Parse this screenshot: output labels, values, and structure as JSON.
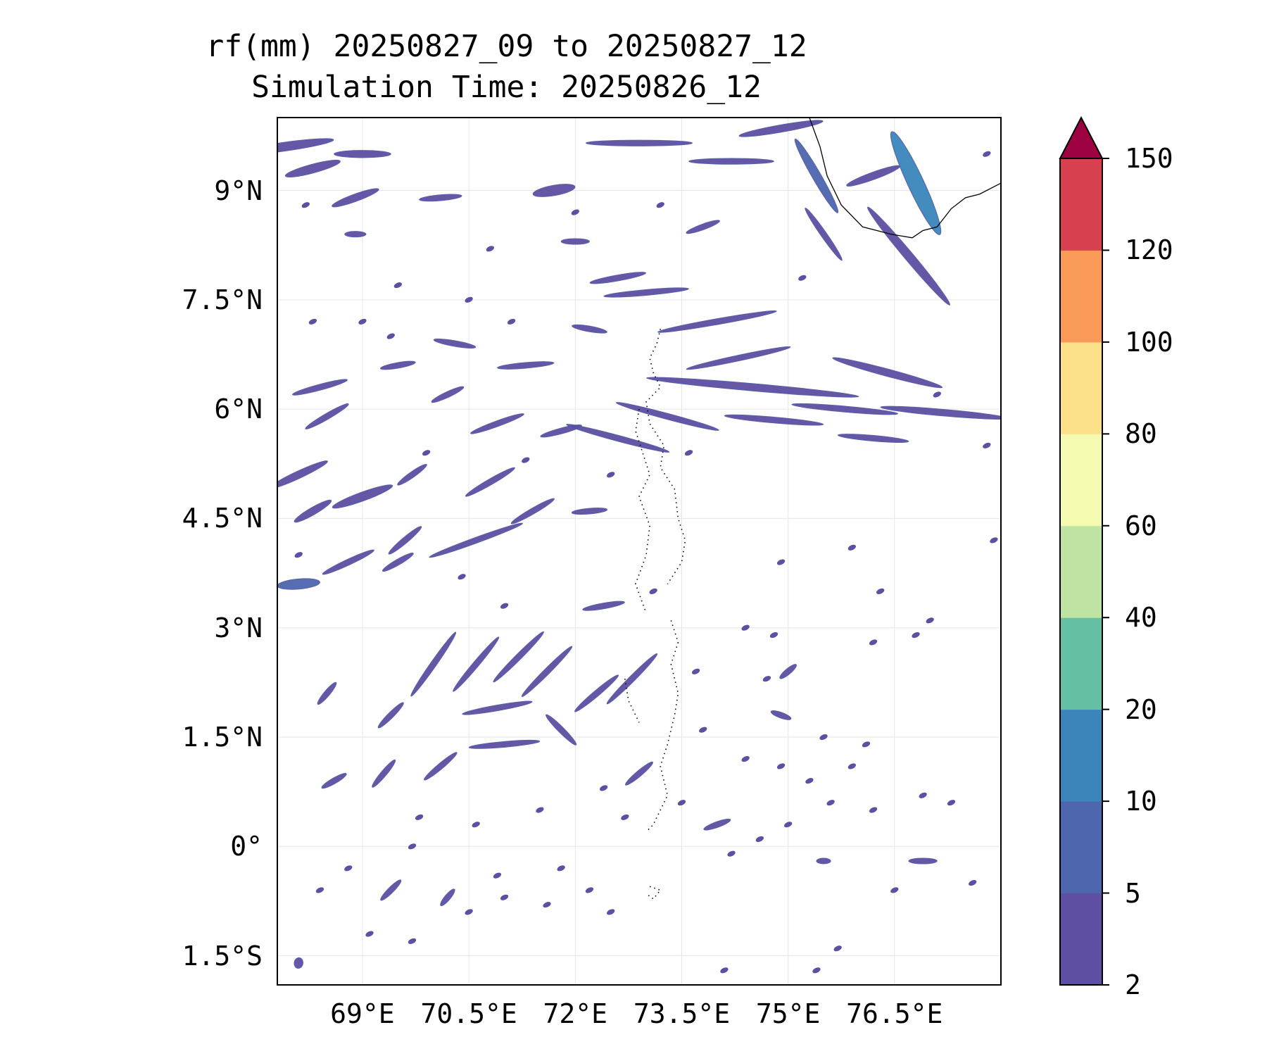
{
  "title": {
    "line1": "rf(mm) 20250827_09 to 20250827_12",
    "line2": "Simulation Time: 20250826_12"
  },
  "map": {
    "lon_range": [
      67.8,
      78.0
    ],
    "lat_range": [
      -1.9,
      10.0
    ],
    "gridlines": true,
    "lat_ticks": [
      {
        "value": 9,
        "label": "9°N"
      },
      {
        "value": 7.5,
        "label": "7.5°N"
      },
      {
        "value": 6,
        "label": "6°N"
      },
      {
        "value": 4.5,
        "label": "4.5°N"
      },
      {
        "value": 3,
        "label": "3°N"
      },
      {
        "value": 1.5,
        "label": "1.5°N"
      },
      {
        "value": 0,
        "label": "0°"
      },
      {
        "value": -1.5,
        "label": "1.5°S"
      }
    ],
    "lon_ticks": [
      {
        "value": 69,
        "label": "69°E"
      },
      {
        "value": 70.5,
        "label": "70.5°E"
      },
      {
        "value": 72,
        "label": "72°E"
      },
      {
        "value": 73.5,
        "label": "73.5°E"
      },
      {
        "value": 75,
        "label": "75°E"
      },
      {
        "value": 76.5,
        "label": "76.5°E"
      }
    ],
    "rain_bands": [
      {
        "lon": 67.9,
        "lat": 9.6,
        "len": 1.4,
        "w": 0.12,
        "ang": 8,
        "lvl": 1
      },
      {
        "lon": 69.0,
        "lat": 9.5,
        "len": 0.8,
        "w": 0.1,
        "ang": 0,
        "lvl": 1
      },
      {
        "lon": 68.3,
        "lat": 9.3,
        "len": 0.8,
        "w": 0.12,
        "ang": 15,
        "lvl": 1
      },
      {
        "lon": 68.9,
        "lat": 8.9,
        "len": 0.7,
        "w": 0.1,
        "ang": 20,
        "lvl": 1
      },
      {
        "lon": 70.1,
        "lat": 8.9,
        "len": 0.6,
        "w": 0.08,
        "ang": 5,
        "lvl": 1
      },
      {
        "lon": 71.7,
        "lat": 9.0,
        "len": 0.6,
        "w": 0.14,
        "ang": 10,
        "lvl": 1
      },
      {
        "lon": 72.9,
        "lat": 9.65,
        "len": 1.5,
        "w": 0.08,
        "ang": 0,
        "lvl": 1
      },
      {
        "lon": 74.2,
        "lat": 9.4,
        "len": 1.2,
        "w": 0.08,
        "ang": 0,
        "lvl": 1
      },
      {
        "lon": 74.9,
        "lat": 9.85,
        "len": 1.2,
        "w": 0.1,
        "ang": 10,
        "lvl": 1
      },
      {
        "lon": 75.4,
        "lat": 9.2,
        "len": 1.2,
        "w": 0.12,
        "ang": -60,
        "lvl": 2
      },
      {
        "lon": 76.8,
        "lat": 9.1,
        "len": 1.6,
        "w": 0.22,
        "ang": -65,
        "lvl": 3
      },
      {
        "lon": 76.7,
        "lat": 8.1,
        "len": 1.8,
        "w": 0.12,
        "ang": -50,
        "lvl": 1
      },
      {
        "lon": 75.5,
        "lat": 8.4,
        "len": 0.9,
        "w": 0.08,
        "ang": -55,
        "lvl": 1
      },
      {
        "lon": 76.2,
        "lat": 9.2,
        "len": 0.8,
        "w": 0.1,
        "ang": 20,
        "lvl": 1
      },
      {
        "lon": 68.9,
        "lat": 8.4,
        "len": 0.3,
        "w": 0.06,
        "ang": 0,
        "lvl": 1
      },
      {
        "lon": 72.0,
        "lat": 8.3,
        "len": 0.4,
        "w": 0.06,
        "ang": 0,
        "lvl": 1
      },
      {
        "lon": 73.8,
        "lat": 8.5,
        "len": 0.5,
        "w": 0.07,
        "ang": 20,
        "lvl": 1
      },
      {
        "lon": 72.6,
        "lat": 7.8,
        "len": 0.8,
        "w": 0.08,
        "ang": 10,
        "lvl": 1
      },
      {
        "lon": 73.0,
        "lat": 7.6,
        "len": 1.2,
        "w": 0.07,
        "ang": 5,
        "lvl": 1
      },
      {
        "lon": 74.0,
        "lat": 7.2,
        "len": 1.7,
        "w": 0.08,
        "ang": 10,
        "lvl": 1
      },
      {
        "lon": 74.3,
        "lat": 6.7,
        "len": 1.5,
        "w": 0.07,
        "ang": 12,
        "lvl": 1
      },
      {
        "lon": 74.5,
        "lat": 6.3,
        "len": 3.0,
        "w": 0.1,
        "ang": -5,
        "lvl": 1
      },
      {
        "lon": 76.4,
        "lat": 6.5,
        "len": 1.6,
        "w": 0.1,
        "ang": -15,
        "lvl": 1
      },
      {
        "lon": 77.2,
        "lat": 5.95,
        "len": 1.8,
        "w": 0.09,
        "ang": -5,
        "lvl": 1
      },
      {
        "lon": 75.8,
        "lat": 6.0,
        "len": 1.5,
        "w": 0.08,
        "ang": -5,
        "lvl": 1
      },
      {
        "lon": 74.8,
        "lat": 5.85,
        "len": 1.4,
        "w": 0.08,
        "ang": -5,
        "lvl": 1
      },
      {
        "lon": 76.2,
        "lat": 5.6,
        "len": 1.0,
        "w": 0.07,
        "ang": -5,
        "lvl": 1
      },
      {
        "lon": 73.3,
        "lat": 5.9,
        "len": 1.5,
        "w": 0.08,
        "ang": -15,
        "lvl": 1
      },
      {
        "lon": 72.6,
        "lat": 5.6,
        "len": 1.5,
        "w": 0.08,
        "ang": -15,
        "lvl": 1
      },
      {
        "lon": 71.3,
        "lat": 6.6,
        "len": 0.8,
        "w": 0.06,
        "ang": 5,
        "lvl": 1
      },
      {
        "lon": 72.2,
        "lat": 7.1,
        "len": 0.5,
        "w": 0.06,
        "ang": -10,
        "lvl": 1
      },
      {
        "lon": 70.3,
        "lat": 6.9,
        "len": 0.6,
        "w": 0.06,
        "ang": -10,
        "lvl": 1
      },
      {
        "lon": 69.5,
        "lat": 6.6,
        "len": 0.5,
        "w": 0.07,
        "ang": 10,
        "lvl": 1
      },
      {
        "lon": 68.4,
        "lat": 6.3,
        "len": 0.8,
        "w": 0.08,
        "ang": 15,
        "lvl": 1
      },
      {
        "lon": 68.5,
        "lat": 5.9,
        "len": 0.7,
        "w": 0.08,
        "ang": 30,
        "lvl": 1
      },
      {
        "lon": 70.2,
        "lat": 6.2,
        "len": 0.5,
        "w": 0.07,
        "ang": 25,
        "lvl": 1
      },
      {
        "lon": 70.9,
        "lat": 5.8,
        "len": 0.8,
        "w": 0.07,
        "ang": 20,
        "lvl": 1
      },
      {
        "lon": 71.8,
        "lat": 5.7,
        "len": 0.6,
        "w": 0.07,
        "ang": 15,
        "lvl": 1
      },
      {
        "lon": 68.1,
        "lat": 5.1,
        "len": 0.9,
        "w": 0.1,
        "ang": 25,
        "lvl": 1
      },
      {
        "lon": 69.0,
        "lat": 4.8,
        "len": 0.9,
        "w": 0.12,
        "ang": 20,
        "lvl": 1
      },
      {
        "lon": 68.3,
        "lat": 4.6,
        "len": 0.6,
        "w": 0.1,
        "ang": 30,
        "lvl": 1
      },
      {
        "lon": 69.7,
        "lat": 5.1,
        "len": 0.5,
        "w": 0.07,
        "ang": 35,
        "lvl": 1
      },
      {
        "lon": 70.8,
        "lat": 5.0,
        "len": 0.8,
        "w": 0.08,
        "ang": 30,
        "lvl": 1
      },
      {
        "lon": 71.4,
        "lat": 4.6,
        "len": 0.7,
        "w": 0.07,
        "ang": 30,
        "lvl": 1
      },
      {
        "lon": 70.6,
        "lat": 4.2,
        "len": 1.4,
        "w": 0.07,
        "ang": 20,
        "lvl": 1
      },
      {
        "lon": 69.6,
        "lat": 4.2,
        "len": 0.6,
        "w": 0.08,
        "ang": 40,
        "lvl": 1
      },
      {
        "lon": 72.2,
        "lat": 4.6,
        "len": 0.5,
        "w": 0.06,
        "ang": 5,
        "lvl": 1
      },
      {
        "lon": 68.1,
        "lat": 3.6,
        "len": 0.6,
        "w": 0.14,
        "ang": 5,
        "lvl": 2
      },
      {
        "lon": 68.8,
        "lat": 3.9,
        "len": 0.8,
        "w": 0.08,
        "ang": 25,
        "lvl": 1
      },
      {
        "lon": 69.5,
        "lat": 3.9,
        "len": 0.5,
        "w": 0.07,
        "ang": 30,
        "lvl": 1
      },
      {
        "lon": 70.0,
        "lat": 2.5,
        "len": 1.1,
        "w": 0.08,
        "ang": 55,
        "lvl": 1
      },
      {
        "lon": 70.6,
        "lat": 2.5,
        "len": 1.0,
        "w": 0.08,
        "ang": 50,
        "lvl": 1
      },
      {
        "lon": 71.2,
        "lat": 2.6,
        "len": 1.0,
        "w": 0.08,
        "ang": 45,
        "lvl": 1
      },
      {
        "lon": 71.6,
        "lat": 2.4,
        "len": 1.0,
        "w": 0.08,
        "ang": 45,
        "lvl": 1
      },
      {
        "lon": 72.3,
        "lat": 2.1,
        "len": 0.8,
        "w": 0.08,
        "ang": 40,
        "lvl": 1
      },
      {
        "lon": 72.8,
        "lat": 2.3,
        "len": 1.0,
        "w": 0.08,
        "ang": 45,
        "lvl": 1
      },
      {
        "lon": 70.9,
        "lat": 1.9,
        "len": 1.0,
        "w": 0.07,
        "ang": 10,
        "lvl": 1
      },
      {
        "lon": 71.0,
        "lat": 1.4,
        "len": 1.0,
        "w": 0.07,
        "ang": 5,
        "lvl": 1
      },
      {
        "lon": 71.8,
        "lat": 1.6,
        "len": 0.6,
        "w": 0.08,
        "ang": -45,
        "lvl": 1
      },
      {
        "lon": 72.4,
        "lat": 3.3,
        "len": 0.6,
        "w": 0.07,
        "ang": 10,
        "lvl": 1
      },
      {
        "lon": 69.4,
        "lat": 1.8,
        "len": 0.5,
        "w": 0.07,
        "ang": 45,
        "lvl": 1
      },
      {
        "lon": 70.1,
        "lat": 1.1,
        "len": 0.6,
        "w": 0.07,
        "ang": 40,
        "lvl": 1
      },
      {
        "lon": 69.3,
        "lat": 1.0,
        "len": 0.5,
        "w": 0.07,
        "ang": 50,
        "lvl": 1
      },
      {
        "lon": 68.6,
        "lat": 0.9,
        "len": 0.4,
        "w": 0.06,
        "ang": 30,
        "lvl": 1
      },
      {
        "lon": 68.5,
        "lat": 2.1,
        "len": 0.4,
        "w": 0.06,
        "ang": 50,
        "lvl": 1
      },
      {
        "lon": 72.9,
        "lat": 1.0,
        "len": 0.5,
        "w": 0.06,
        "ang": 40,
        "lvl": 1
      },
      {
        "lon": 74.9,
        "lat": 1.8,
        "len": 0.3,
        "w": 0.06,
        "ang": -20,
        "lvl": 1
      },
      {
        "lon": 74.0,
        "lat": 0.3,
        "len": 0.4,
        "w": 0.06,
        "ang": 20,
        "lvl": 1
      },
      {
        "lon": 75.0,
        "lat": 2.4,
        "len": 0.3,
        "w": 0.06,
        "ang": 40,
        "lvl": 1
      },
      {
        "lon": 76.9,
        "lat": -0.2,
        "len": 0.4,
        "w": 0.04,
        "ang": 0,
        "lvl": 1
      },
      {
        "lon": 75.5,
        "lat": -0.2,
        "len": 0.2,
        "w": 0.04,
        "ang": 0,
        "lvl": 1
      },
      {
        "lon": 69.4,
        "lat": -0.6,
        "len": 0.4,
        "w": 0.05,
        "ang": 45,
        "lvl": 1
      },
      {
        "lon": 70.2,
        "lat": -0.7,
        "len": 0.3,
        "w": 0.05,
        "ang": 50,
        "lvl": 1
      },
      {
        "lon": 68.1,
        "lat": -1.6,
        "len": 0.15,
        "w": 0.12,
        "ang": 80,
        "lvl": 1
      }
    ],
    "rain_dots": [
      [
        68.2,
        8.8
      ],
      [
        69.0,
        7.2
      ],
      [
        69.4,
        7.0
      ],
      [
        70.5,
        7.5
      ],
      [
        71.1,
        7.2
      ],
      [
        69.9,
        5.4
      ],
      [
        71.3,
        5.3
      ],
      [
        72.5,
        5.1
      ],
      [
        73.6,
        5.4
      ],
      [
        70.4,
        3.7
      ],
      [
        71.0,
        3.3
      ],
      [
        73.1,
        3.5
      ],
      [
        74.4,
        3.0
      ],
      [
        74.8,
        2.9
      ],
      [
        76.2,
        2.8
      ],
      [
        76.8,
        2.9
      ],
      [
        76.3,
        3.5
      ],
      [
        75.5,
        1.5
      ],
      [
        76.1,
        1.4
      ],
      [
        73.8,
        1.6
      ],
      [
        74.4,
        1.2
      ],
      [
        74.9,
        1.1
      ],
      [
        75.3,
        0.9
      ],
      [
        75.9,
        1.1
      ],
      [
        73.5,
        0.6
      ],
      [
        72.4,
        0.8
      ],
      [
        71.5,
        0.5
      ],
      [
        70.6,
        0.3
      ],
      [
        69.8,
        0.4
      ],
      [
        72.7,
        0.4
      ],
      [
        74.6,
        0.1
      ],
      [
        75.0,
        0.3
      ],
      [
        75.6,
        0.6
      ],
      [
        76.2,
        0.5
      ],
      [
        76.9,
        0.7
      ],
      [
        74.2,
        -0.1
      ],
      [
        75.7,
        -1.4
      ],
      [
        76.5,
        -0.6
      ],
      [
        75.4,
        -1.7
      ],
      [
        74.1,
        -1.7
      ],
      [
        68.4,
        -0.6
      ],
      [
        68.8,
        -0.3
      ],
      [
        69.1,
        -1.2
      ],
      [
        69.7,
        -1.3
      ],
      [
        70.5,
        -0.9
      ],
      [
        71.0,
        -0.7
      ],
      [
        71.6,
        -0.8
      ],
      [
        72.2,
        -0.6
      ],
      [
        72.5,
        -0.9
      ],
      [
        77.6,
        -0.5
      ],
      [
        77.3,
        0.6
      ],
      [
        77.0,
        3.1
      ],
      [
        77.9,
        4.2
      ],
      [
        75.9,
        4.1
      ],
      [
        74.9,
        3.9
      ],
      [
        77.1,
        6.2
      ],
      [
        77.8,
        5.5
      ],
      [
        77.8,
        9.5
      ],
      [
        75.2,
        7.8
      ],
      [
        73.2,
        8.8
      ],
      [
        72.0,
        8.7
      ],
      [
        70.8,
        8.2
      ],
      [
        69.5,
        7.7
      ],
      [
        68.3,
        7.2
      ],
      [
        68.1,
        4.0
      ],
      [
        69.7,
        0.0
      ],
      [
        70.9,
        -0.4
      ],
      [
        71.8,
        -0.3
      ],
      [
        73.7,
        2.4
      ],
      [
        74.7,
        2.3
      ]
    ],
    "coastline": [
      [
        75.3,
        10.0
      ],
      [
        75.45,
        9.6
      ],
      [
        75.55,
        9.2
      ],
      [
        75.75,
        8.8
      ],
      [
        76.05,
        8.5
      ],
      [
        76.45,
        8.4
      ],
      [
        76.75,
        8.35
      ],
      [
        76.9,
        8.45
      ],
      [
        77.1,
        8.5
      ],
      [
        77.3,
        8.75
      ],
      [
        77.5,
        8.9
      ],
      [
        77.7,
        8.95
      ],
      [
        77.9,
        9.05
      ],
      [
        78.0,
        9.1
      ]
    ],
    "island_groups": [
      [
        [
          73.2,
          7.1
        ],
        [
          73.15,
          6.9
        ],
        [
          73.05,
          6.7
        ],
        [
          73.1,
          6.5
        ],
        [
          73.2,
          6.3
        ],
        [
          73.0,
          6.1
        ],
        [
          73.05,
          5.8
        ],
        [
          73.25,
          5.5
        ],
        [
          73.2,
          5.2
        ],
        [
          73.4,
          4.9
        ],
        [
          73.45,
          4.5
        ],
        [
          73.55,
          4.2
        ],
        [
          73.5,
          3.9
        ],
        [
          73.3,
          3.6
        ]
      ],
      [
        [
          72.9,
          6.0
        ],
        [
          72.85,
          5.7
        ],
        [
          72.95,
          5.4
        ],
        [
          73.05,
          5.1
        ],
        [
          72.9,
          4.8
        ],
        [
          73.05,
          4.4
        ],
        [
          73.0,
          4.0
        ],
        [
          72.85,
          3.6
        ],
        [
          73.0,
          3.2
        ]
      ],
      [
        [
          73.35,
          3.1
        ],
        [
          73.45,
          2.8
        ],
        [
          73.35,
          2.5
        ],
        [
          73.45,
          2.1
        ],
        [
          73.4,
          1.8
        ],
        [
          73.3,
          1.4
        ],
        [
          73.2,
          1.1
        ],
        [
          73.3,
          0.7
        ],
        [
          73.1,
          0.3
        ],
        [
          73.0,
          0.2
        ]
      ],
      [
        [
          72.7,
          2.3
        ],
        [
          72.75,
          2.0
        ],
        [
          72.9,
          1.7
        ]
      ],
      [
        [
          73.05,
          -0.55
        ],
        [
          73.2,
          -0.6
        ],
        [
          73.1,
          -0.72
        ],
        [
          73.0,
          -0.65
        ]
      ]
    ]
  },
  "colorbar": {
    "levels": [
      2,
      5,
      10,
      20,
      40,
      60,
      80,
      100,
      120,
      150
    ],
    "labels": [
      "2",
      "5",
      "10",
      "20",
      "40",
      "60",
      "80",
      "100",
      "120",
      "150"
    ],
    "colors": [
      "#5e4fa2",
      "#4d66ad",
      "#3b85bb",
      "#64bfa4",
      "#bee3a2",
      "#f4faaf",
      "#fce08a",
      "#fa9a59",
      "#d7404e"
    ],
    "extend_color": "#9e0142"
  }
}
